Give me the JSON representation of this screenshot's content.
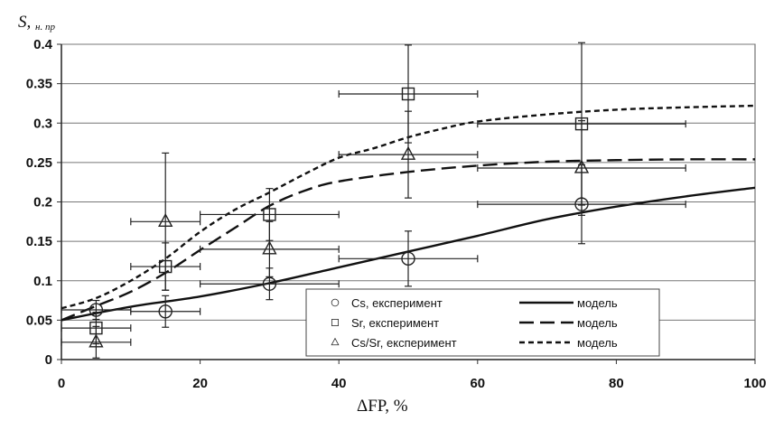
{
  "chart_data": {
    "type": "scatter",
    "ylabel": "S",
    "ylabel_sub": "н. пр",
    "xlabel": "ΔFP, %",
    "xlim": [
      0,
      100
    ],
    "ylim": [
      0,
      0.4
    ],
    "x_ticks": [
      "0",
      "20",
      "40",
      "60",
      "80",
      "100"
    ],
    "y_ticks": [
      "0",
      "0.05",
      "0.1",
      "0.15",
      "0.2",
      "0.25",
      "0.3",
      "0.35",
      "0.4"
    ],
    "grid": "horizontal",
    "legend_position": "bottom-right",
    "series": [
      {
        "name": "Cs, експеримент",
        "marker": "circle",
        "points": [
          {
            "x": 5,
            "y": 0.063,
            "xerr": 5,
            "yerr": 0.012
          },
          {
            "x": 15,
            "y": 0.061,
            "xerr": 5,
            "yerr": 0.02
          },
          {
            "x": 30,
            "y": 0.096,
            "xerr": 10,
            "yerr": 0.02
          },
          {
            "x": 50,
            "y": 0.128,
            "xerr": 10,
            "yerr": 0.035
          },
          {
            "x": 75,
            "y": 0.197,
            "xerr": 15,
            "yerr": 0.05
          }
        ]
      },
      {
        "name": "Sr, експеримент",
        "marker": "square",
        "points": [
          {
            "x": 5,
            "y": 0.04,
            "xerr": 5,
            "yerr": 0.02
          },
          {
            "x": 15,
            "y": 0.118,
            "xerr": 5,
            "yerr": 0.03
          },
          {
            "x": 30,
            "y": 0.184,
            "xerr": 10,
            "yerr": 0.033
          },
          {
            "x": 50,
            "y": 0.337,
            "xerr": 10,
            "yerr": 0.062
          },
          {
            "x": 75,
            "y": 0.299,
            "xerr": 15,
            "yerr": 0.103
          }
        ]
      },
      {
        "name": "Cs/Sr, експеримент",
        "marker": "triangle",
        "points": [
          {
            "x": 5,
            "y": 0.022,
            "xerr": 5,
            "yerr": 0.02
          },
          {
            "x": 15,
            "y": 0.175,
            "xerr": 5,
            "yerr": 0.087
          },
          {
            "x": 30,
            "y": 0.14,
            "xerr": 10,
            "yerr": 0.035
          },
          {
            "x": 50,
            "y": 0.26,
            "xerr": 10,
            "yerr": 0.055
          },
          {
            "x": 75,
            "y": 0.243,
            "xerr": 15,
            "yerr": 0.06
          }
        ]
      }
    ],
    "model_curves": [
      {
        "name": "модель",
        "style": "solid",
        "x": [
          0,
          10,
          20,
          30,
          40,
          50,
          60,
          70,
          80,
          90,
          100
        ],
        "y": [
          0.05,
          0.067,
          0.08,
          0.097,
          0.117,
          0.137,
          0.157,
          0.178,
          0.194,
          0.207,
          0.218
        ]
      },
      {
        "name": "модель",
        "style": "long-dash",
        "x": [
          0,
          5,
          10,
          15,
          20,
          25,
          30,
          35,
          40,
          50,
          60,
          70,
          80,
          90,
          100
        ],
        "y": [
          0.05,
          0.068,
          0.086,
          0.11,
          0.139,
          0.167,
          0.195,
          0.214,
          0.226,
          0.238,
          0.246,
          0.251,
          0.253,
          0.254,
          0.254
        ]
      },
      {
        "name": "модель",
        "style": "short-dash",
        "x": [
          0,
          5,
          10,
          15,
          20,
          25,
          30,
          35,
          40,
          45,
          50,
          55,
          60,
          70,
          80,
          90,
          100
        ],
        "y": [
          0.065,
          0.078,
          0.1,
          0.128,
          0.162,
          0.19,
          0.212,
          0.235,
          0.256,
          0.268,
          0.282,
          0.293,
          0.302,
          0.311,
          0.317,
          0.32,
          0.322
        ]
      }
    ]
  }
}
